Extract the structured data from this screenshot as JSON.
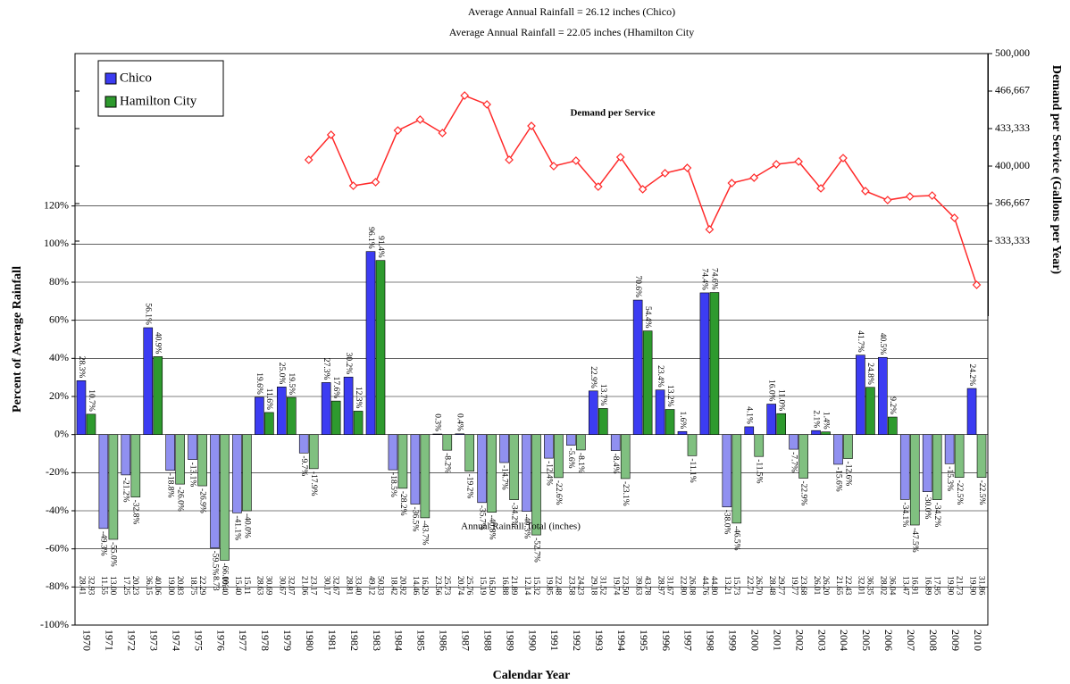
{
  "chart_data": {
    "type": "bar",
    "title": "Average Annual Rainfall = 26.12 inches (Chico)",
    "subtitle": "Average Annual Rainfall = 22.05 inches (Hhamilton City",
    "xlabel": "Calendar Year",
    "ylabel": "Percent of Average Rainfall",
    "y2label": "Demand per Service (Gallons per Year)",
    "categories": [
      "1970",
      "1971",
      "1972",
      "1973",
      "1974",
      "1975",
      "1976",
      "1977",
      "1978",
      "1979",
      "1980",
      "1981",
      "1982",
      "1983",
      "1984",
      "1985",
      "1986",
      "1987",
      "1988",
      "1989",
      "1990",
      "1991",
      "1992",
      "1993",
      "1994",
      "1995",
      "1996",
      "1997",
      "1998",
      "1999",
      "2000",
      "2001",
      "2002",
      "2003",
      "2004",
      "2005",
      "2006",
      "2007",
      "2008",
      "2009",
      "2010"
    ],
    "ylim": [
      -100,
      200
    ],
    "yticks": [
      {
        "value": -100,
        "label": "-100%"
      },
      {
        "value": -80,
        "label": "-80%"
      },
      {
        "value": -60,
        "label": "-60%"
      },
      {
        "value": -40,
        "label": "-40%"
      },
      {
        "value": -20,
        "label": "-20%"
      },
      {
        "value": 0,
        "label": "0%"
      },
      {
        "value": 20,
        "label": "20%"
      },
      {
        "value": 40,
        "label": "40%"
      },
      {
        "value": 60,
        "label": "60%"
      },
      {
        "value": 80,
        "label": "80%"
      },
      {
        "value": 100,
        "label": "100%"
      },
      {
        "value": 120,
        "label": "120%"
      }
    ],
    "y2lim": [
      266667,
      500000
    ],
    "y2ticks": [
      {
        "value": 333333,
        "label": "333,333"
      },
      {
        "value": 366667,
        "label": "366,667"
      },
      {
        "value": 400000,
        "label": "400,000"
      },
      {
        "value": 433333,
        "label": "433,333"
      },
      {
        "value": 466667,
        "label": "466,667"
      },
      {
        "value": 500000,
        "label": "500,000"
      }
    ],
    "grid": true,
    "legend": "upper left",
    "series": [
      {
        "name": "Chico",
        "color": "#3c3cf2",
        "negative_color": "#9090f0",
        "values": [
          28.3,
          -49.3,
          -21.2,
          56.1,
          -18.8,
          -13.1,
          -59.5,
          -41.1,
          19.6,
          25.0,
          -9.7,
          27.3,
          30.2,
          96.1,
          -18.5,
          -36.5,
          0.3,
          0.4,
          -35.7,
          -14.7,
          -40.3,
          -12.4,
          -5.6,
          22.9,
          -8.4,
          70.6,
          23.4,
          1.6,
          74.4,
          -38.0,
          4.1,
          16.0,
          -7.7,
          2.1,
          -15.6,
          41.7,
          40.5,
          -34.1,
          -30.0,
          -15.3,
          24.2
        ],
        "value_labels": [
          "28.3%",
          "-49.3%",
          "-21.2%",
          "56.1%",
          "-18.8%",
          "-13.1%",
          "-59.5%",
          "-41.1%",
          "19.6%",
          "25.0%",
          "-9.7%",
          "27.3%",
          "30.2%",
          "96.1%",
          "-18.5%",
          "-36.5%",
          "0.3%",
          "0.4%",
          "-35.7%",
          "-14.7%",
          "-40.3%",
          "-12.4%",
          "-5.6%",
          "22.9%",
          "-8.4%",
          "70.6%",
          "23.4%",
          "1.6%",
          "74.4%",
          "-38.0%",
          "4.1%",
          "16.0%",
          "-7.7%",
          "2.1%",
          "-15.6%",
          "41.7%",
          "40.5%",
          "-34.1%",
          "-30.0%",
          "-15.3%",
          "24.2%"
        ]
      },
      {
        "name": "Hamilton City",
        "color": "#2e9a2e",
        "negative_color": "#80c080",
        "values": [
          10.7,
          -55.0,
          -32.8,
          40.9,
          -26.0,
          -26.9,
          -66.0,
          -40.0,
          11.6,
          19.5,
          -17.9,
          17.6,
          12.3,
          91.4,
          -28.2,
          -43.7,
          -8.2,
          -19.2,
          -40.8,
          -34.2,
          -52.7,
          -22.6,
          -8.1,
          13.7,
          -23.1,
          54.4,
          13.2,
          -11.1,
          74.6,
          -46.5,
          -11.5,
          11.0,
          -22.9,
          1.4,
          -12.6,
          24.8,
          9.2,
          -47.5,
          -34.2,
          -22.5,
          -22.5
        ],
        "value_labels": [
          "10.7%",
          "-55.0%",
          "-32.8%",
          "40.9%",
          "-26.0%",
          "-26.9%",
          "-66.0%",
          "-40.0%",
          "11.6%",
          "19.5%",
          "-17.9%",
          "17.6%",
          "12.3%",
          "91.4%",
          "-28.2%",
          "-43.7%",
          "-8.2%",
          "-19.2%",
          "-40.8%",
          "-34.2%",
          "-52.7%",
          "-22.6%",
          "-8.1%",
          "13.7%",
          "-23.1%",
          "54.4%",
          "13.2%",
          "-11.1%",
          "74.6%",
          "-46.5%",
          "-11.5%",
          "11.0%",
          "-22.9%",
          "1.4%",
          "-12.6%",
          "24.8%",
          "9.2%",
          "-47.5%",
          "-34.2%",
          "-22.5%",
          "-22.5%"
        ]
      },
      {
        "name": "Demand per Service",
        "type": "line",
        "axis": "y2",
        "color": "#ff2a2a",
        "values": [
          null,
          null,
          null,
          null,
          null,
          null,
          null,
          null,
          null,
          null,
          405600,
          427800,
          382500,
          385700,
          431700,
          441300,
          429400,
          462700,
          454800,
          405600,
          435700,
          400000,
          404800,
          381700,
          407900,
          379400,
          393700,
          398400,
          343700,
          384900,
          389700,
          401600,
          404000,
          380200,
          407100,
          377800,
          369800,
          373000,
          373800,
          354000,
          294400
        ]
      }
    ],
    "rainfall": {
      "label": "Annual Rainfall Total (inches)",
      "upper": [
        "32.93",
        "13.00",
        "20.23",
        "40.06",
        "20.83",
        "22.29",
        "10.40",
        "15.11",
        "30.69",
        "32.07",
        "23.17",
        "32.67",
        "33.40",
        "50.33",
        "20.92",
        "16.29",
        "25.73",
        "25.76",
        "16.50",
        "21.89",
        "15.32",
        "22.48",
        "24.23",
        "31.52",
        "23.50",
        "43.78",
        "31.67",
        "26.08",
        "44.80",
        "15.73",
        "26.70",
        "29.77",
        "23.68",
        "26.20",
        "22.43",
        "36.35",
        "36.04",
        "16.91",
        "17.95",
        "21.73",
        "31.86"
      ],
      "lower": [
        "28.41",
        "11.55",
        "17.25",
        "36.15",
        "19.00",
        "18.75",
        "8.73",
        "15.40",
        "28.63",
        "30.67",
        "21.06",
        "30.17",
        "28.81",
        "49.12",
        "18.42",
        "14.46",
        "23.56",
        "20.74",
        "15.19",
        "16.88",
        "12.14",
        "19.85",
        "23.58",
        "29.18",
        "19.74",
        "39.63",
        "28.97",
        "22.80",
        "44.76",
        "13.21",
        "22.71",
        "28.48",
        "19.77",
        "26.01",
        "21.65",
        "32.01",
        "28.02",
        "13.47",
        "16.89",
        "19.90",
        "19.90"
      ]
    }
  }
}
